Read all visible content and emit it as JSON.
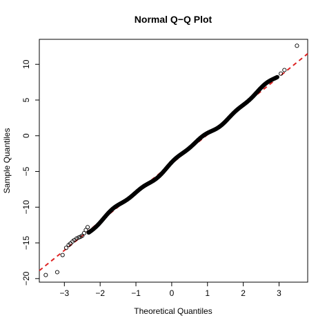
{
  "chart_data": {
    "type": "scatter",
    "title": "Normal Q−Q Plot",
    "xlabel": "Theoretical Quantiles",
    "ylabel": "Sample Quantiles",
    "xlim": [
      -3.7,
      3.8
    ],
    "ylim": [
      -20.5,
      13.5
    ],
    "x_ticks": [
      -3,
      -2,
      -1,
      0,
      1,
      2,
      3
    ],
    "x_tick_labels": [
      "−3",
      "−2",
      "−1",
      "0",
      "1",
      "2",
      "3"
    ],
    "y_ticks": [
      -20,
      -15,
      -10,
      -5,
      0,
      5,
      10
    ],
    "y_tick_labels": [
      "−20",
      "−15",
      "−10",
      "−5",
      "0",
      "5",
      "10"
    ],
    "grid": false,
    "reference_line": {
      "intercept": -3.9,
      "slope": 4.05,
      "style": "dashed",
      "color": "#dd2222"
    },
    "series": [
      {
        "marker": "open-circle",
        "color": "#000000",
        "points": [
          [
            -3.52,
            -19.5
          ],
          [
            -3.2,
            -19.1
          ],
          [
            -3.05,
            -16.7
          ],
          [
            -2.95,
            -15.7
          ],
          [
            -2.88,
            -15.3
          ],
          [
            -2.83,
            -15.1
          ],
          [
            -2.77,
            -14.8
          ],
          [
            -2.72,
            -14.6
          ],
          [
            -2.66,
            -14.4
          ],
          [
            -2.6,
            -14.25
          ],
          [
            -2.55,
            -14.15
          ],
          [
            -2.5,
            -14.0
          ],
          [
            -2.45,
            -13.65
          ],
          [
            -2.4,
            -13.2
          ],
          [
            -2.35,
            -12.8
          ],
          [
            3.05,
            8.7
          ],
          [
            3.15,
            9.2
          ],
          [
            3.5,
            12.6
          ]
        ],
        "dense_band": {
          "x_range": [
            -2.32,
            2.95
          ],
          "intercept": -3.85,
          "slope": 4.1,
          "count": 470
        }
      }
    ]
  }
}
